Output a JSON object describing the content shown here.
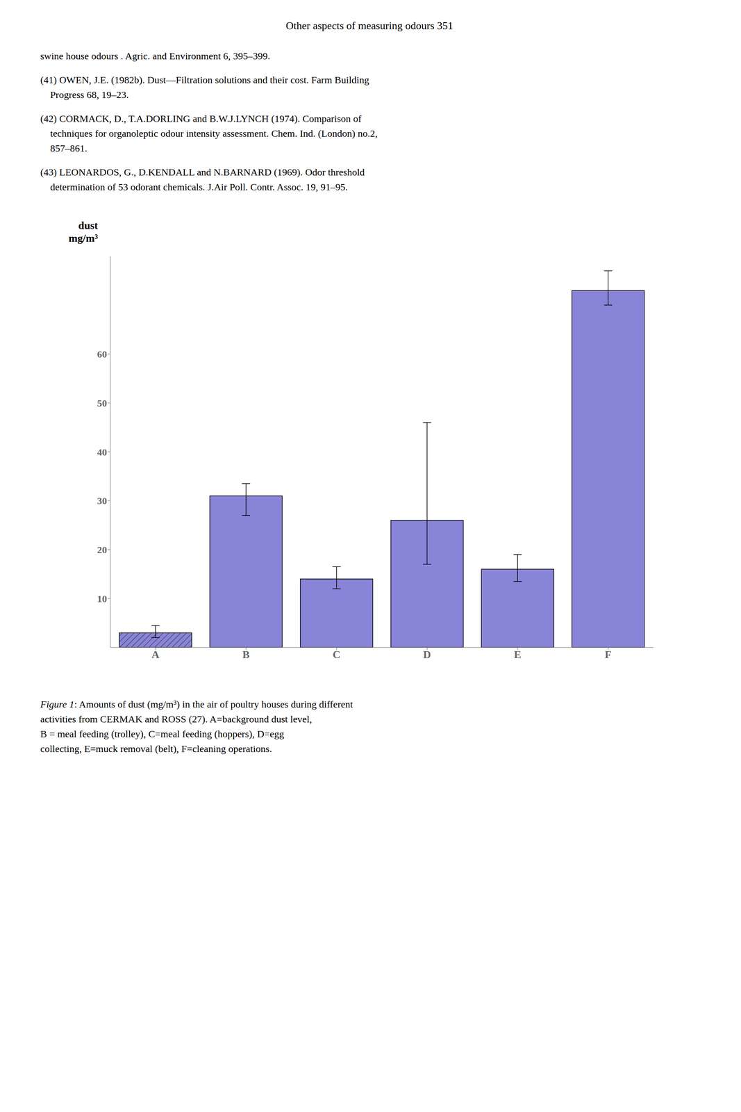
{
  "chart_data": {
    "type": "bar",
    "categories": [
      "A",
      "B",
      "C",
      "D",
      "E",
      "F"
    ],
    "values": [
      3.0,
      31.0,
      14.0,
      26.0,
      16.0,
      73.0
    ],
    "yerr_low": [
      1.0,
      4.0,
      2.0,
      9.0,
      2.5,
      3.0
    ],
    "yerr_high": [
      1.5,
      2.5,
      2.5,
      20.0,
      3.0,
      4.0
    ],
    "ylabel": "dust\nmg/m³",
    "ylim": [
      0,
      80
    ],
    "yticks": [
      10,
      20,
      30,
      40,
      50,
      60
    ],
    "color": "#8884d8",
    "grid": false,
    "annotations": [
      "Other aspects of measuring odours    351",
      "swine house odours . Agric. and Environment 6, 395–399.",
      "(41) OWEN, J.E. (1982b). Dust—Filtration solutions and their cost. Farm Building\n    Progress 68, 19–23.",
      "(42) CORMACK, D., T.A.DORLING and B.W.J.LYNCH (1974). Comparison of\n    techniques for organoleptic odour intensity assessment. Chem. Ind. (London) no.2,\n    857–861.",
      "(43) LEONARDOS, G., D.KENDALL and N.BARNARD (1969). Odor threshold\n    determination of 53 odorant chemicals. J.Air Poll. Contr. Assoc. 19, 91–95."
    ],
    "caption": {
      "title": "Figure 1",
      "text": ": Amounts of dust (mg/m³) in the air of poultry houses during different\nactivities from CERMAK and ROSS (27). A=background dust level,\nB = meal feeding (trolley), C=meal feeding (hoppers), D=egg\ncollecting, E=muck removal (belt), F=cleaning operations."
    }
  }
}
